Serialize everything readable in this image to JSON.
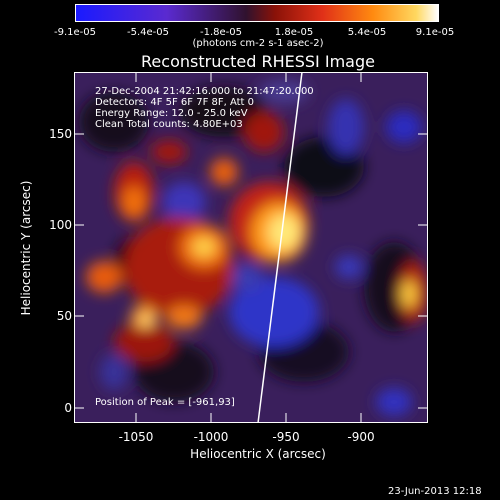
{
  "colorbar": {
    "ticks": [
      "-9.1e-05",
      "-5.4e-05",
      "-1.8e-05",
      "1.8e-05",
      "5.4e-05",
      "9.1e-05"
    ],
    "units": "(photons cm-2 s-1 asec-2)"
  },
  "title": "Reconstructed RHESSI Image",
  "info": {
    "line1": "27-Dec-2004 21:42:16.000 to 21:47:20.000",
    "line2": "Detectors: 4F 5F 6F 7F 8F, Att 0",
    "line3": "Energy Range: 12.0 - 25.0 keV",
    "line4": "Clean    Total counts: 4.80E+03",
    "peak": "Position of Peak = [-961,93]"
  },
  "axes": {
    "xlabel": "Heliocentric X (arcsec)",
    "ylabel": "Heliocentric Y (arcsec)",
    "x_ticks": [
      "-1050",
      "-1000",
      "-950",
      "-900"
    ],
    "y_ticks": [
      "0",
      "50",
      "100",
      "150"
    ]
  },
  "datestamp": "23-Jun-2013 12:18"
}
